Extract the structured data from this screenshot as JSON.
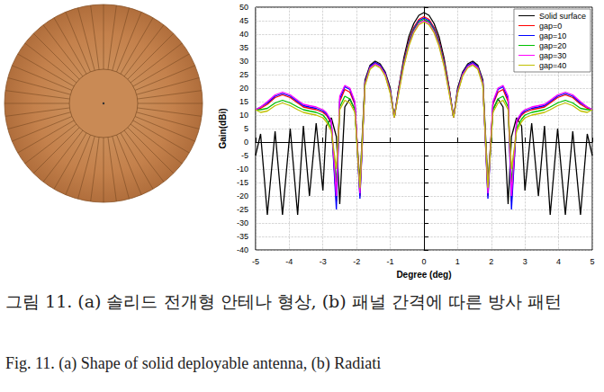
{
  "caption": {
    "ko": "그림 11. (a) 솔리드 전개형 안테나 형상, (b) 패널 간격에 따른 방사 패턴",
    "en": "Fig. 11. (a) Shape of solid deployable antenna, (b) Radiati"
  },
  "chart_data": {
    "type": "line",
    "x_label": "Degree (deg)",
    "y_label": "Gain(dBi)",
    "x": [
      -5.0,
      -4.85,
      -4.65,
      -4.42,
      -4.2,
      -3.97,
      -3.75,
      -3.58,
      -3.4,
      -3.2,
      -3.0,
      -2.9,
      -2.75,
      -2.6,
      -2.5,
      -2.35,
      -2.2,
      -2.05,
      -1.9,
      -1.75,
      -1.6,
      -1.45,
      -1.3,
      -1.15,
      -1.0,
      -0.88,
      -0.75,
      -0.6,
      -0.45,
      -0.3,
      -0.15,
      0,
      0.15,
      0.3,
      0.45,
      0.6,
      0.75,
      0.88,
      1.0,
      1.15,
      1.3,
      1.45,
      1.6,
      1.75,
      1.9,
      2.05,
      2.2,
      2.35,
      2.5,
      2.6,
      2.75,
      2.9,
      3.0,
      3.2,
      3.4,
      3.58,
      3.75,
      3.97,
      4.2,
      4.42,
      4.65,
      4.85,
      5.0
    ],
    "series": [
      {
        "name": "Solid surface",
        "color": "#000000",
        "values": [
          -5,
          3,
          -27,
          4,
          -27,
          5,
          -27,
          6,
          -20,
          7,
          -18,
          6,
          9,
          2,
          -23,
          13,
          16,
          12,
          -15,
          23,
          28.5,
          30,
          29,
          26,
          20,
          9,
          20,
          31,
          39,
          44,
          47,
          48,
          47,
          44,
          39,
          31,
          20,
          9,
          20,
          26,
          29,
          30,
          28.5,
          23,
          -15,
          12,
          16,
          13,
          -23,
          2,
          9,
          6,
          -18,
          7,
          -20,
          6,
          -27,
          5,
          -27,
          4,
          -27,
          3,
          -5
        ]
      },
      {
        "name": "gap=0",
        "color": "#ff0000",
        "values": [
          12,
          12.5,
          14,
          16.5,
          17.5,
          16.5,
          14.5,
          13,
          12.5,
          12,
          11,
          10,
          7,
          -22,
          15,
          19.5,
          18.5,
          14,
          -20,
          22,
          28,
          29.5,
          28.5,
          25.5,
          19,
          9,
          20,
          30,
          37.5,
          42.5,
          45.5,
          46.5,
          45.5,
          42.5,
          37.5,
          30,
          20,
          9,
          19,
          25.5,
          28.5,
          29.5,
          28,
          22,
          -20,
          14,
          18.5,
          19.5,
          15,
          -22,
          7,
          10,
          11,
          12,
          12.5,
          13,
          14.5,
          16.5,
          17.5,
          16.5,
          14,
          12.5,
          12
        ]
      },
      {
        "name": "gap=10",
        "color": "#0000ff",
        "values": [
          12,
          13,
          14.5,
          17,
          18,
          17,
          15,
          13.5,
          13,
          12.5,
          11.5,
          10.5,
          7.5,
          -25,
          16,
          20.5,
          19.5,
          14.5,
          -21,
          22,
          28,
          29.5,
          28.5,
          25.5,
          19,
          9,
          19.5,
          29.5,
          37,
          42,
          45,
          46,
          45,
          42,
          37,
          29.5,
          19.5,
          9,
          19,
          25.5,
          28.5,
          29.5,
          28,
          22,
          -21,
          14.5,
          19.5,
          20.5,
          16,
          -25,
          7.5,
          10.5,
          11.5,
          12.5,
          13,
          13.5,
          15,
          17,
          18,
          17,
          14.5,
          13,
          12
        ]
      },
      {
        "name": "gap=20",
        "color": "#00c000",
        "values": [
          12,
          12,
          12.5,
          14.5,
          15.5,
          14.5,
          13,
          12,
          11.5,
          11,
          10,
          8.5,
          5,
          -15,
          13,
          17,
          16,
          12,
          -18,
          21.5,
          27.5,
          29,
          28,
          25,
          18.5,
          9,
          19,
          29,
          36.5,
          41.5,
          44.5,
          45.5,
          44.5,
          41.5,
          36.5,
          29,
          19,
          9,
          18.5,
          25,
          28,
          29,
          27.5,
          21.5,
          -18,
          12,
          16,
          17,
          13,
          -15,
          5,
          8.5,
          10,
          11,
          11.5,
          12,
          13,
          14.5,
          15.5,
          14.5,
          12.5,
          12,
          12
        ]
      },
      {
        "name": "gap=30",
        "color": "#ff00ff",
        "values": [
          12,
          13,
          15,
          17.5,
          18.5,
          17.5,
          15.5,
          14,
          13.5,
          13,
          12,
          11,
          8,
          -20,
          17,
          21,
          20,
          15,
          -19,
          21.5,
          27.5,
          29,
          28,
          25,
          18.5,
          9,
          18.5,
          28.5,
          36,
          41,
          44,
          45,
          44,
          41,
          36,
          28.5,
          18.5,
          9,
          18.5,
          25,
          28,
          29,
          27.5,
          21.5,
          -19,
          15,
          20,
          21,
          17,
          -20,
          8,
          11,
          12,
          13,
          13.5,
          14,
          15.5,
          17.5,
          18.5,
          17.5,
          15,
          13,
          12
        ]
      },
      {
        "name": "gap=40",
        "color": "#c0c000",
        "values": [
          12,
          11,
          11.5,
          13.5,
          14.5,
          13.5,
          12,
          11,
          10.5,
          10,
          9,
          7.5,
          4,
          -10,
          12,
          15.5,
          14.5,
          11,
          -17,
          21,
          27,
          28.5,
          27.5,
          24.5,
          18,
          9,
          18,
          28,
          35.5,
          40.5,
          43.5,
          44.5,
          43.5,
          40.5,
          35.5,
          28,
          18,
          9,
          18,
          24.5,
          27.5,
          28.5,
          27,
          21,
          -17,
          11,
          14.5,
          15.5,
          12,
          -10,
          4,
          7.5,
          9,
          10,
          10.5,
          11,
          12,
          13.5,
          14.5,
          13.5,
          11.5,
          11,
          12
        ]
      }
    ],
    "xlim": [
      -5,
      5
    ],
    "xticks": [
      -5,
      -4,
      -3,
      -2,
      -1,
      0,
      1,
      2,
      3,
      4,
      5
    ],
    "ylim": [
      -40,
      50
    ],
    "yticks": [
      -40,
      -35,
      -30,
      -25,
      -20,
      -15,
      -10,
      -5,
      0,
      5,
      10,
      15,
      20,
      25,
      30,
      35,
      40,
      45,
      50
    ],
    "grid": true,
    "legend": "upper right"
  }
}
